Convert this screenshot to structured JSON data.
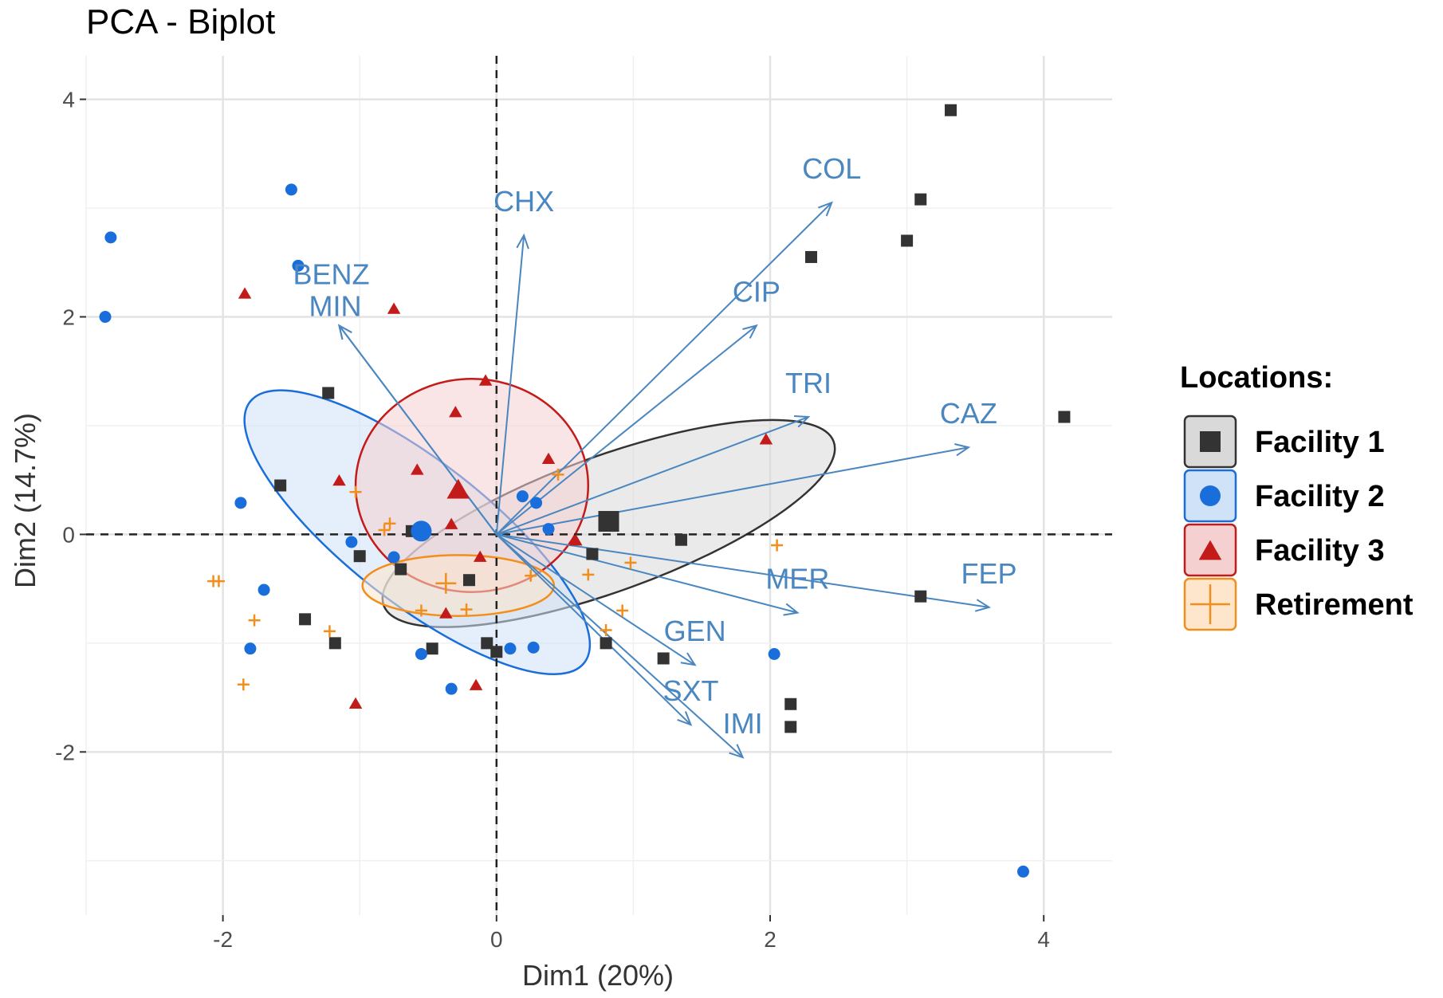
{
  "chart_data": {
    "type": "scatter",
    "title": "PCA - Biplot",
    "xlabel": "Dim1 (20%)",
    "ylabel": "Dim2 (14.7%)",
    "xlim": [
      -3.0,
      4.5
    ],
    "ylim": [
      -3.5,
      4.4
    ],
    "x_ticks": [
      -2,
      0,
      2,
      4
    ],
    "y_ticks": [
      -2,
      0,
      2,
      4
    ],
    "grid": true,
    "legend": {
      "title": "Locations:",
      "position": "right"
    },
    "series": [
      {
        "name": "Facility 1",
        "marker": "square",
        "color": "#333333",
        "fill": "#d9d9d9",
        "points": [
          [
            3.32,
            3.9
          ],
          [
            3.1,
            3.08
          ],
          [
            3.0,
            2.7
          ],
          [
            2.3,
            2.55
          ],
          [
            4.15,
            1.08
          ],
          [
            -1.23,
            1.3
          ],
          [
            -1.58,
            0.45
          ],
          [
            1.35,
            -0.05
          ],
          [
            -1.0,
            -0.2
          ],
          [
            -0.7,
            -0.32
          ],
          [
            -0.2,
            -0.42
          ],
          [
            0.7,
            -0.18
          ],
          [
            -1.4,
            -0.78
          ],
          [
            -1.18,
            -1.0
          ],
          [
            -0.47,
            -1.05
          ],
          [
            -0.07,
            -1.0
          ],
          [
            0.0,
            -1.08
          ],
          [
            0.8,
            -1.0
          ],
          [
            1.22,
            -1.14
          ],
          [
            3.1,
            -0.57
          ],
          [
            2.15,
            -1.56
          ],
          [
            2.15,
            -1.77
          ],
          [
            -0.62,
            0.03
          ]
        ],
        "center": [
          0.82,
          0.12
        ],
        "ellipse": {
          "cx": 0.82,
          "cy": 0.1,
          "rx": 1.75,
          "ry": 0.62,
          "angle": 20
        }
      },
      {
        "name": "Facility 2",
        "marker": "circle",
        "color": "#1a6edb",
        "fill": "#cfe2f7",
        "points": [
          [
            -2.82,
            2.73
          ],
          [
            -2.86,
            2.0
          ],
          [
            -1.5,
            3.17
          ],
          [
            -1.45,
            2.47
          ],
          [
            -1.87,
            0.29
          ],
          [
            -1.06,
            -0.07
          ],
          [
            -0.75,
            -0.21
          ],
          [
            -1.7,
            -0.51
          ],
          [
            -1.8,
            -1.05
          ],
          [
            -0.55,
            -1.1
          ],
          [
            -0.33,
            -1.42
          ],
          [
            0.1,
            -1.05
          ],
          [
            0.27,
            -1.04
          ],
          [
            0.19,
            0.35
          ],
          [
            0.29,
            0.29
          ],
          [
            0.38,
            0.05
          ],
          [
            2.03,
            -1.1
          ],
          [
            3.85,
            -3.1
          ]
        ],
        "center": [
          -0.55,
          0.03
        ],
        "ellipse": {
          "cx": -0.58,
          "cy": 0.02,
          "rx": 1.55,
          "ry": 0.65,
          "angle": -38
        }
      },
      {
        "name": "Facility 3",
        "marker": "triangle",
        "color": "#c31a1a",
        "fill": "#f4d0d0",
        "points": [
          [
            -1.84,
            2.22
          ],
          [
            -0.75,
            2.08
          ],
          [
            -0.08,
            1.42
          ],
          [
            -0.3,
            1.13
          ],
          [
            0.38,
            0.7
          ],
          [
            -0.58,
            0.6
          ],
          [
            -1.15,
            0.5
          ],
          [
            -0.33,
            0.1
          ],
          [
            -0.12,
            -0.2
          ],
          [
            0.58,
            -0.05
          ],
          [
            -0.37,
            -0.72
          ],
          [
            -0.15,
            -1.38
          ],
          [
            -1.03,
            -1.55
          ],
          [
            1.97,
            0.88
          ]
        ],
        "center": [
          -0.28,
          0.42
        ],
        "ellipse": {
          "cx": -0.18,
          "cy": 0.45,
          "rx": 0.85,
          "ry": 0.98,
          "angle": 0
        }
      },
      {
        "name": "Retirement",
        "marker": "cross",
        "color": "#f28e1c",
        "fill": "#fde6cc",
        "points": [
          [
            -1.03,
            0.39
          ],
          [
            -0.82,
            0.04
          ],
          [
            -0.78,
            0.1
          ],
          [
            -2.03,
            -0.43
          ],
          [
            -2.07,
            -0.43
          ],
          [
            -1.77,
            -0.79
          ],
          [
            -1.22,
            -0.89
          ],
          [
            -1.85,
            -1.38
          ],
          [
            -0.55,
            -0.7
          ],
          [
            -0.22,
            -0.69
          ],
          [
            0.45,
            0.55
          ],
          [
            0.67,
            -0.37
          ],
          [
            0.98,
            -0.26
          ],
          [
            0.92,
            -0.7
          ],
          [
            0.8,
            -0.88
          ],
          [
            2.05,
            -0.1
          ],
          [
            0.25,
            -0.38
          ]
        ],
        "center": [
          -0.37,
          -0.45
        ],
        "ellipse": {
          "cx": -0.28,
          "cy": -0.47,
          "rx": 0.7,
          "ry": 0.28,
          "angle": 0
        }
      }
    ],
    "variables": [
      {
        "name": "COL",
        "x": 2.45,
        "y": 3.05
      },
      {
        "name": "CHX",
        "x": 0.2,
        "y": 2.75
      },
      {
        "name": "BENZ",
        "x": -1.15,
        "y": 1.92
      },
      {
        "name": "MIN",
        "x": -1.15,
        "y": 1.92
      },
      {
        "name": "CIP",
        "x": 1.9,
        "y": 1.92
      },
      {
        "name": "TRI",
        "x": 2.28,
        "y": 1.08
      },
      {
        "name": "CAZ",
        "x": 3.45,
        "y": 0.8
      },
      {
        "name": "MER",
        "x": 2.2,
        "y": -0.72
      },
      {
        "name": "FEP",
        "x": 3.6,
        "y": -0.67
      },
      {
        "name": "GEN",
        "x": 1.45,
        "y": -1.2
      },
      {
        "name": "SXT",
        "x": 1.42,
        "y": -1.75
      },
      {
        "name": "IMI",
        "x": 1.8,
        "y": -2.05
      }
    ]
  }
}
